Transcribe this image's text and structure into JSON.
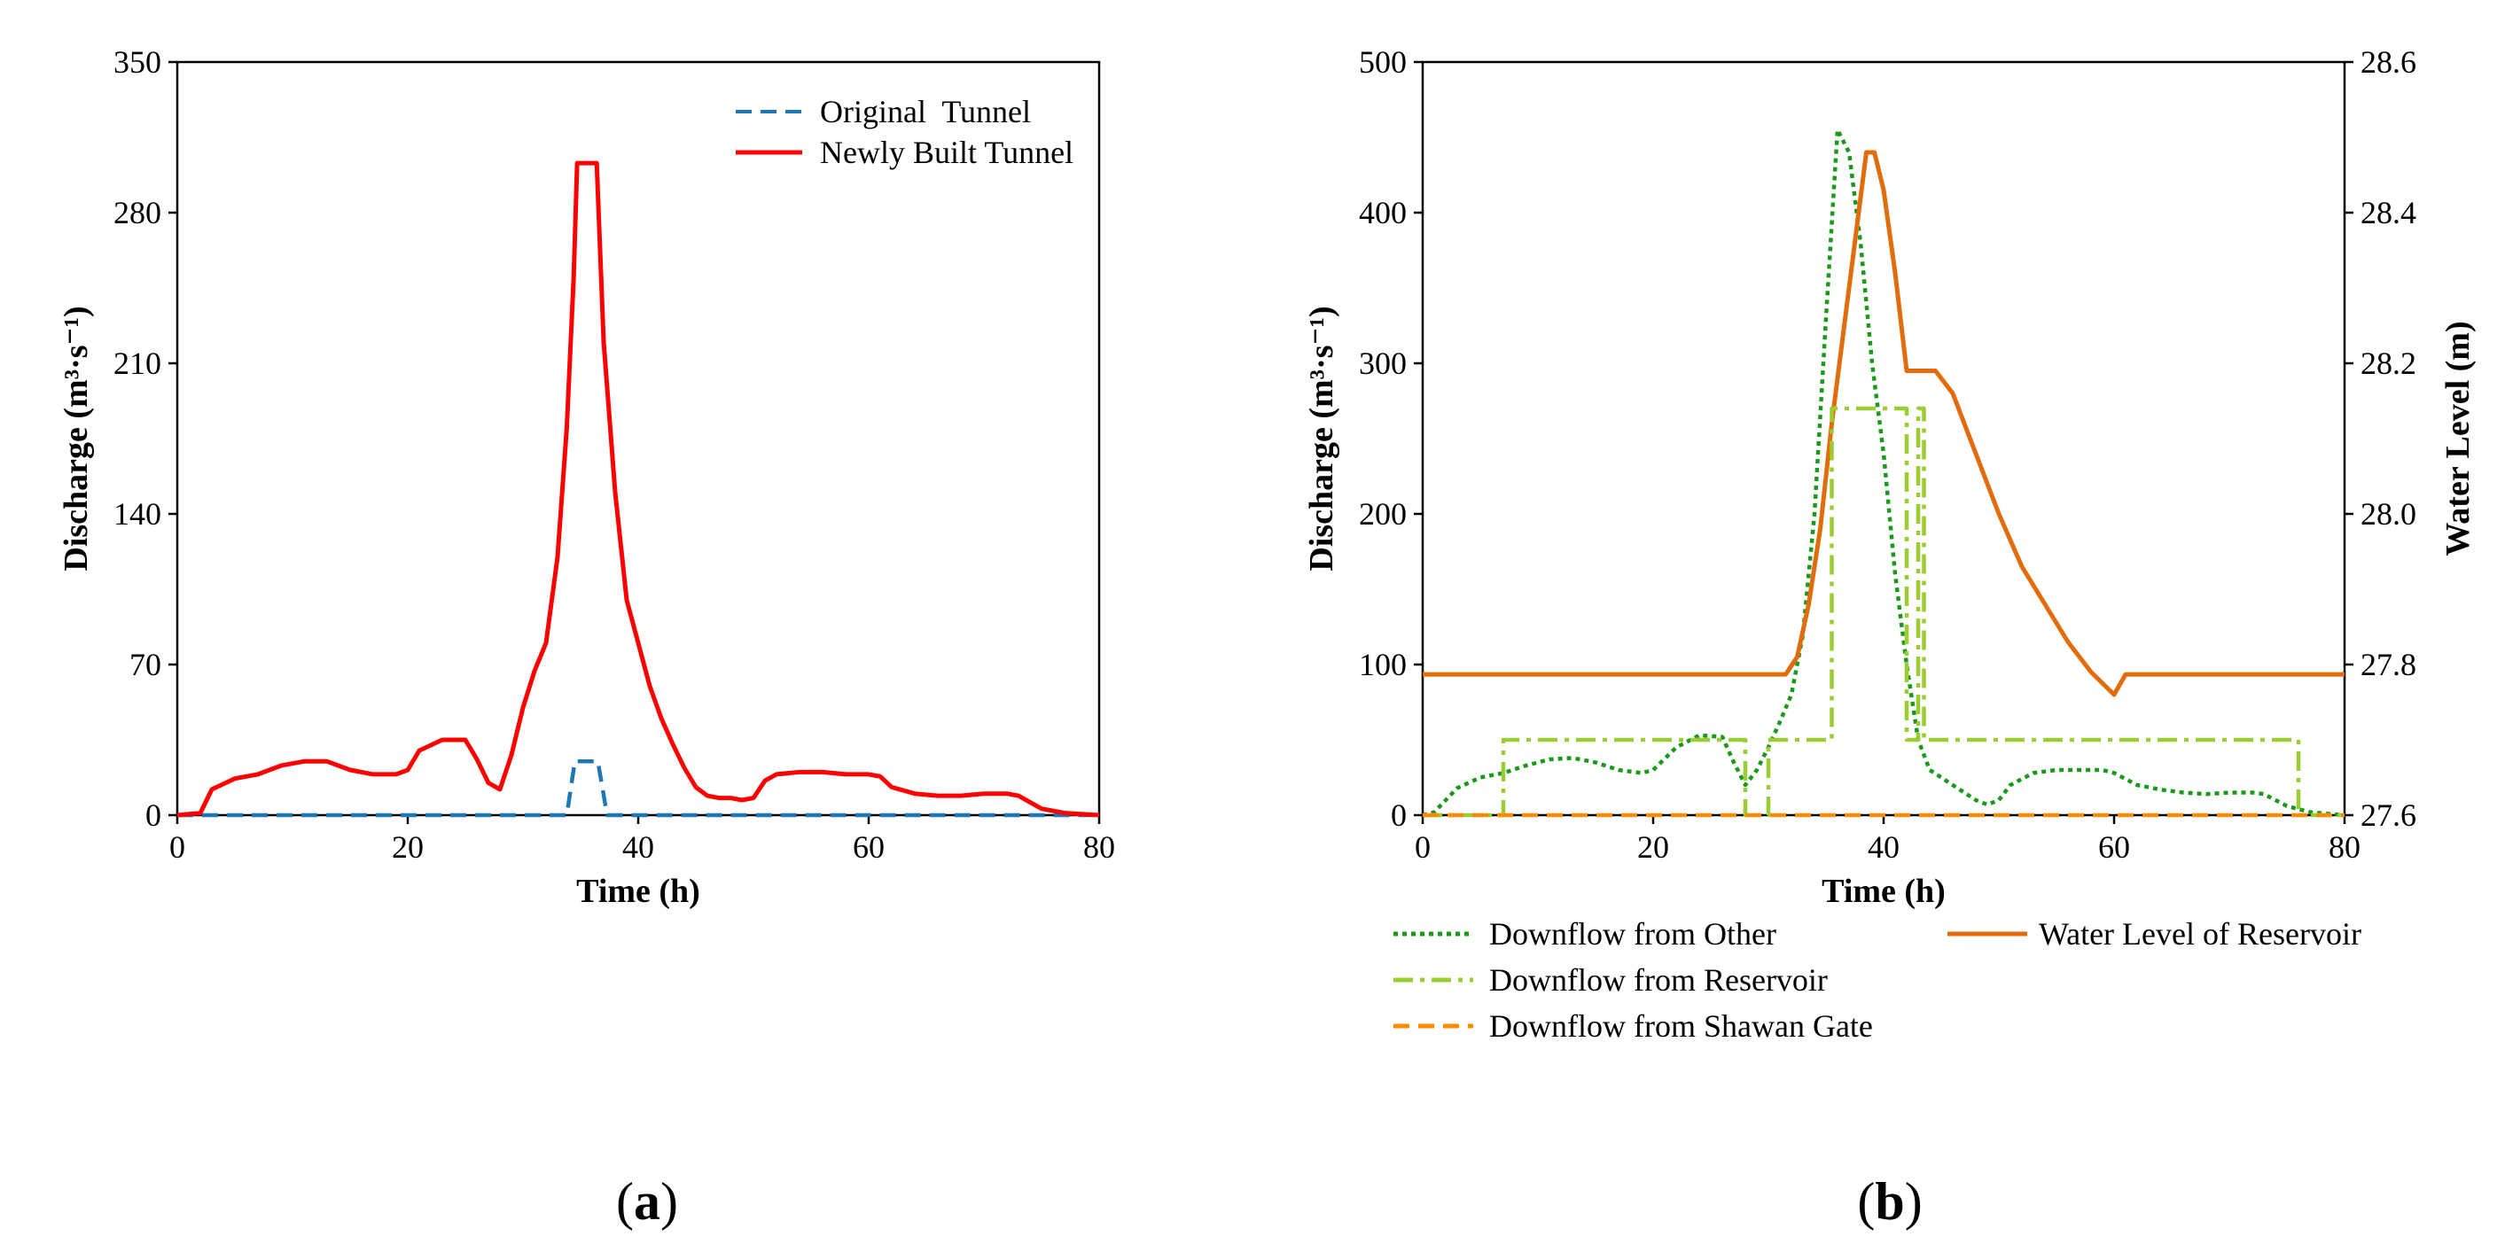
{
  "figure": {
    "panel_a_label": {
      "open": "(",
      "letter": "a",
      "close": ")"
    },
    "panel_b_label": {
      "open": "(",
      "letter": "b",
      "close": ")"
    }
  },
  "chart_data": [
    {
      "id": "a",
      "type": "line",
      "title": "",
      "xlabel": "Time (h)",
      "ylabel": "Discharge (m³·s⁻¹)",
      "xlim": [
        0,
        80
      ],
      "ylim": [
        0,
        350
      ],
      "xticks": [
        0,
        20,
        40,
        60,
        80
      ],
      "yticks": [
        0,
        70,
        140,
        210,
        280,
        350
      ],
      "legend_position": "top-right",
      "series": [
        {
          "name": "Original  Tunnel",
          "color": "#1f77b4",
          "style": "dashed",
          "points": [
            [
              0,
              0
            ],
            [
              33.8,
              0
            ],
            [
              34.5,
              25
            ],
            [
              36.5,
              25
            ],
            [
              37.3,
              0
            ],
            [
              80,
              0
            ]
          ]
        },
        {
          "name": "Newly Built Tunnel",
          "color": "#ff0000",
          "style": "solid",
          "points": [
            [
              0,
              0
            ],
            [
              2,
              1
            ],
            [
              3,
              12
            ],
            [
              5,
              17
            ],
            [
              7,
              19
            ],
            [
              9,
              23
            ],
            [
              11,
              25
            ],
            [
              13,
              25
            ],
            [
              15,
              21
            ],
            [
              17,
              19
            ],
            [
              19,
              19
            ],
            [
              20,
              21
            ],
            [
              21,
              30
            ],
            [
              23,
              35
            ],
            [
              25,
              35
            ],
            [
              26,
              26
            ],
            [
              27,
              15
            ],
            [
              28,
              12
            ],
            [
              29,
              28
            ],
            [
              30,
              50
            ],
            [
              31,
              67
            ],
            [
              32,
              80
            ],
            [
              33,
              120
            ],
            [
              33.8,
              180
            ],
            [
              34.4,
              250
            ],
            [
              34.7,
              303
            ],
            [
              36.4,
              303
            ],
            [
              37,
              220
            ],
            [
              38,
              150
            ],
            [
              39,
              100
            ],
            [
              40,
              80
            ],
            [
              41,
              60
            ],
            [
              42,
              45
            ],
            [
              43,
              33
            ],
            [
              44,
              22
            ],
            [
              45,
              13
            ],
            [
              46,
              9
            ],
            [
              47,
              8
            ],
            [
              48,
              8
            ],
            [
              49,
              7
            ],
            [
              50,
              8
            ],
            [
              51,
              16
            ],
            [
              52,
              19
            ],
            [
              54,
              20
            ],
            [
              56,
              20
            ],
            [
              58,
              19
            ],
            [
              60,
              19
            ],
            [
              61,
              18
            ],
            [
              62,
              13
            ],
            [
              64,
              10
            ],
            [
              66,
              9
            ],
            [
              68,
              9
            ],
            [
              70,
              10
            ],
            [
              72,
              10
            ],
            [
              73,
              9
            ],
            [
              74,
              6
            ],
            [
              75,
              3
            ],
            [
              77,
              1
            ],
            [
              80,
              0
            ]
          ]
        }
      ]
    },
    {
      "id": "b",
      "type": "line",
      "title": "",
      "xlabel": "Time (h)",
      "ylabel": "Discharge (m³·s⁻¹)",
      "y2label": "Water Level (m)",
      "xlim": [
        0,
        80
      ],
      "ylim": [
        0,
        500
      ],
      "y2lim": [
        27.6,
        28.6
      ],
      "xticks": [
        0,
        20,
        40,
        60,
        80
      ],
      "yticks": [
        0,
        100,
        200,
        300,
        400,
        500
      ],
      "y2ticks": [
        "27.6",
        "27.8",
        "28.0",
        "28.2",
        "28.4",
        "28.6"
      ],
      "legend_position": "below",
      "series": [
        {
          "name": "Downflow from Other",
          "axis": "left",
          "color": "#1a9a1a",
          "style": "dotted",
          "points": [
            [
              0,
              0
            ],
            [
              1,
              2
            ],
            [
              2,
              10
            ],
            [
              3,
              18
            ],
            [
              5,
              25
            ],
            [
              7,
              28
            ],
            [
              9,
              33
            ],
            [
              11,
              37
            ],
            [
              13,
              38
            ],
            [
              15,
              35
            ],
            [
              17,
              30
            ],
            [
              19,
              28
            ],
            [
              20,
              30
            ],
            [
              22,
              45
            ],
            [
              24,
              53
            ],
            [
              26,
              52
            ],
            [
              27,
              35
            ],
            [
              28,
              20
            ],
            [
              29,
              30
            ],
            [
              30,
              45
            ],
            [
              31,
              62
            ],
            [
              32,
              80
            ],
            [
              33,
              120
            ],
            [
              34,
              200
            ],
            [
              35,
              330
            ],
            [
              36,
              455
            ],
            [
              37,
              440
            ],
            [
              38,
              380
            ],
            [
              39,
              300
            ],
            [
              40,
              240
            ],
            [
              41,
              160
            ],
            [
              42,
              100
            ],
            [
              43,
              50
            ],
            [
              44,
              30
            ],
            [
              46,
              20
            ],
            [
              48,
              10
            ],
            [
              49,
              7
            ],
            [
              50,
              10
            ],
            [
              51,
              20
            ],
            [
              53,
              28
            ],
            [
              55,
              30
            ],
            [
              57,
              30
            ],
            [
              59,
              30
            ],
            [
              60,
              28
            ],
            [
              62,
              20
            ],
            [
              64,
              17
            ],
            [
              66,
              15
            ],
            [
              68,
              14
            ],
            [
              70,
              15
            ],
            [
              72,
              15
            ],
            [
              73,
              14
            ],
            [
              74,
              10
            ],
            [
              75,
              6
            ],
            [
              77,
              2
            ],
            [
              80,
              0
            ]
          ]
        },
        {
          "name": "Water Level of Reservoir",
          "axis": "right",
          "color": "#e36c0a",
          "style": "solid",
          "points": [
            [
              0,
              27.787
            ],
            [
              31.5,
              27.787
            ],
            [
              32.5,
              27.81
            ],
            [
              33.5,
              27.88
            ],
            [
              34.5,
              27.98
            ],
            [
              35.5,
              28.12
            ],
            [
              36.5,
              28.24
            ],
            [
              37.5,
              28.36
            ],
            [
              38.5,
              28.48
            ],
            [
              39.2,
              28.48
            ],
            [
              40,
              28.43
            ],
            [
              41,
              28.32
            ],
            [
              42,
              28.19
            ],
            [
              42.5,
              28.19
            ],
            [
              44.5,
              28.19
            ],
            [
              46,
              28.16
            ],
            [
              48,
              28.08
            ],
            [
              50,
              28.0
            ],
            [
              52,
              27.93
            ],
            [
              54,
              27.88
            ],
            [
              56,
              27.83
            ],
            [
              58,
              27.79
            ],
            [
              60,
              27.76
            ],
            [
              61,
              27.787
            ],
            [
              80,
              27.787
            ]
          ]
        },
        {
          "name": "Downflow from Reservoir",
          "axis": "left",
          "color": "#9acd32",
          "style": "dashdot",
          "points": [
            [
              0,
              0
            ],
            [
              7,
              0
            ],
            [
              7,
              50
            ],
            [
              28,
              50
            ],
            [
              28,
              0
            ],
            [
              30,
              0
            ],
            [
              30,
              50
            ],
            [
              35.5,
              50
            ],
            [
              35.5,
              270
            ],
            [
              42,
              270
            ],
            [
              42,
              50
            ],
            [
              43,
              50
            ],
            [
              43,
              270
            ],
            [
              43.5,
              270
            ],
            [
              43.5,
              50
            ],
            [
              76,
              50
            ],
            [
              76,
              0
            ],
            [
              80,
              0
            ]
          ]
        },
        {
          "name": "Downflow from Shawan Gate",
          "axis": "left",
          "color": "#ff8c00",
          "style": "dashed",
          "points": [
            [
              0,
              0
            ],
            [
              80,
              0
            ]
          ]
        }
      ]
    }
  ]
}
